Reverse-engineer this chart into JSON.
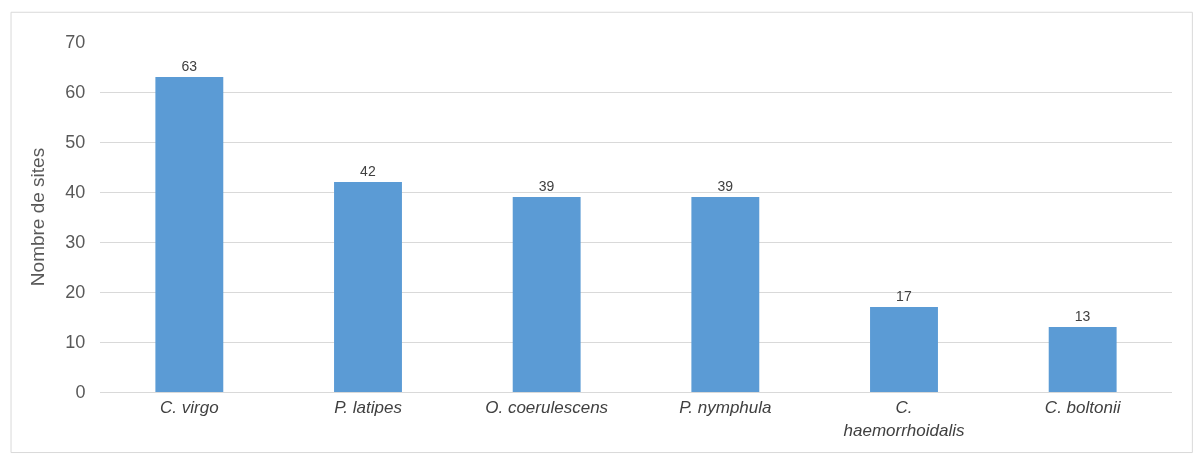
{
  "chart_data": {
    "type": "bar",
    "ylabel": "Nombre de sites",
    "categories": [
      "C. virgo",
      "P. latipes",
      "O. coerulescens",
      "P. nymphula",
      "C. haemorrhoidalis",
      "C. boltonii"
    ],
    "values": [
      63,
      42,
      39,
      39,
      17,
      13
    ],
    "color": "#5b9bd5",
    "ylim": [
      0,
      70
    ],
    "yticks": [
      0,
      10,
      20,
      30,
      40,
      50,
      60,
      70
    ],
    "grid": "y",
    "data_labels": true,
    "legend": false
  }
}
